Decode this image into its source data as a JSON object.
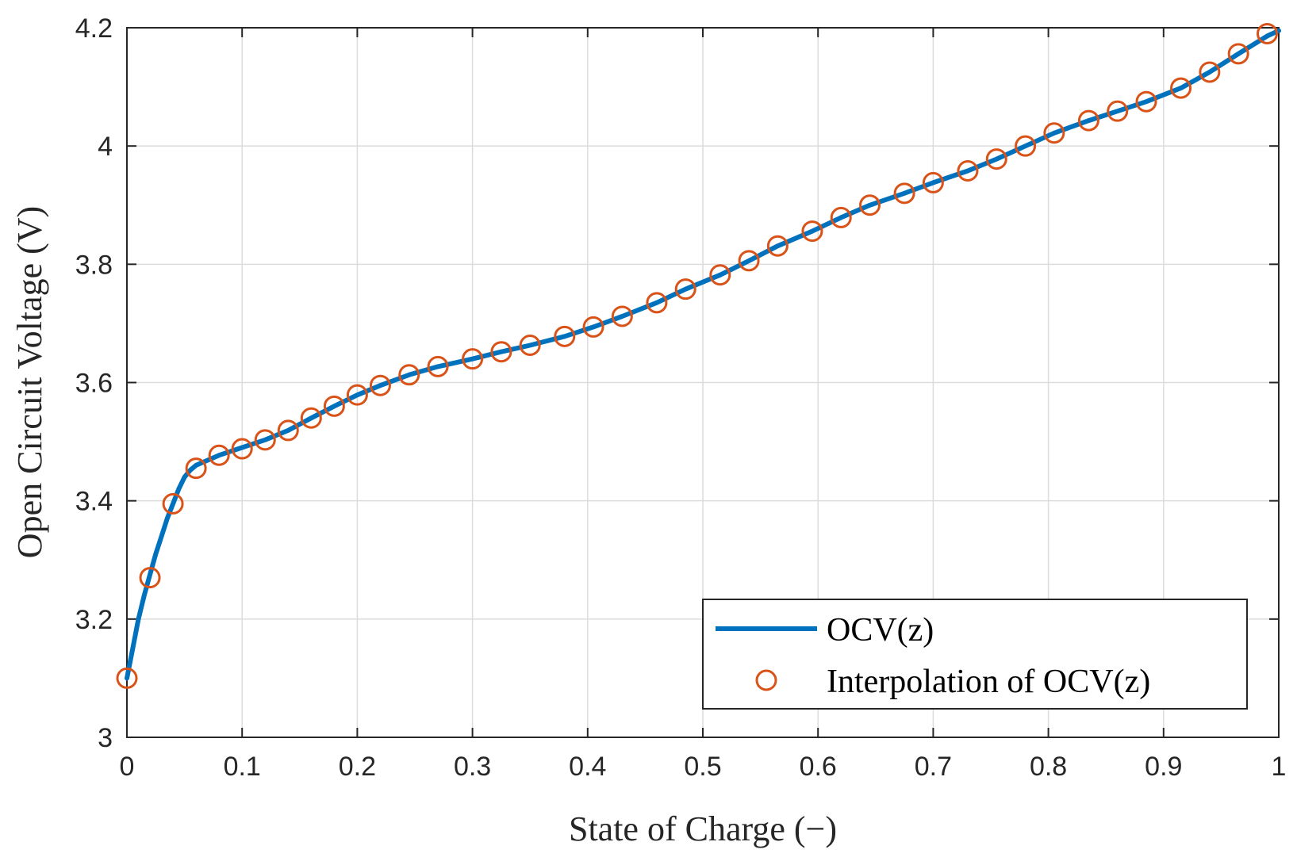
{
  "chart_data": {
    "type": "line",
    "title": "",
    "xlabel": "State of Charge (−)",
    "ylabel": "Open Circuit Voltage (V)",
    "xlim": [
      0,
      1
    ],
    "ylim": [
      3,
      4.2
    ],
    "grid": true,
    "x_ticks": [
      0,
      0.1,
      0.2,
      0.3,
      0.4,
      0.5,
      0.6,
      0.7,
      0.8,
      0.9,
      1
    ],
    "x_tick_labels": [
      "0",
      "0.1",
      "0.2",
      "0.3",
      "0.4",
      "0.5",
      "0.6",
      "0.7",
      "0.8",
      "0.9",
      "1"
    ],
    "y_ticks": [
      3,
      3.2,
      3.4,
      3.6,
      3.8,
      4,
      4.2
    ],
    "y_tick_labels": [
      "3",
      "3.2",
      "3.4",
      "3.6",
      "3.8",
      "4",
      "4.2"
    ],
    "legend_position": "bottom-right",
    "series": [
      {
        "name": "OCV(z)",
        "style": "line",
        "color": "#0072BD",
        "x": [
          0,
          0.005,
          0.01,
          0.015,
          0.02,
          0.025,
          0.03,
          0.035,
          0.04,
          0.045,
          0.05,
          0.055,
          0.06,
          0.08,
          0.1,
          0.12,
          0.14,
          0.16,
          0.18,
          0.2,
          0.22,
          0.245,
          0.27,
          0.3,
          0.325,
          0.35,
          0.38,
          0.405,
          0.43,
          0.46,
          0.485,
          0.515,
          0.54,
          0.565,
          0.595,
          0.62,
          0.645,
          0.675,
          0.7,
          0.73,
          0.755,
          0.78,
          0.805,
          0.835,
          0.86,
          0.885,
          0.915,
          0.94,
          0.965,
          0.99,
          1
        ],
        "y": [
          3.1,
          3.15,
          3.2,
          3.24,
          3.275,
          3.31,
          3.34,
          3.37,
          3.395,
          3.42,
          3.44,
          3.452,
          3.46,
          3.477,
          3.49,
          3.503,
          3.519,
          3.54,
          3.56,
          3.579,
          3.595,
          3.613,
          3.627,
          3.64,
          3.652,
          3.663,
          3.678,
          3.694,
          3.712,
          3.735,
          3.758,
          3.782,
          3.806,
          3.831,
          3.856,
          3.879,
          3.9,
          3.92,
          3.938,
          3.958,
          3.978,
          4.0,
          4.022,
          4.043,
          4.059,
          4.075,
          4.098,
          4.125,
          4.156,
          4.186,
          4.195
        ]
      },
      {
        "name": "Interpolation of OCV(z)",
        "style": "markers",
        "marker": "circle",
        "color": "#D95319",
        "x": [
          0,
          0.02,
          0.04,
          0.06,
          0.08,
          0.1,
          0.12,
          0.14,
          0.16,
          0.18,
          0.2,
          0.22,
          0.245,
          0.27,
          0.3,
          0.325,
          0.35,
          0.38,
          0.405,
          0.43,
          0.46,
          0.485,
          0.515,
          0.54,
          0.565,
          0.595,
          0.62,
          0.645,
          0.675,
          0.7,
          0.73,
          0.755,
          0.78,
          0.805,
          0.835,
          0.86,
          0.885,
          0.915,
          0.94,
          0.965,
          0.99
        ],
        "y": [
          3.1,
          3.27,
          3.395,
          3.455,
          3.477,
          3.488,
          3.503,
          3.519,
          3.54,
          3.56,
          3.579,
          3.595,
          3.613,
          3.627,
          3.64,
          3.652,
          3.663,
          3.678,
          3.694,
          3.712,
          3.735,
          3.758,
          3.782,
          3.806,
          3.831,
          3.856,
          3.879,
          3.9,
          3.92,
          3.938,
          3.958,
          3.978,
          4.0,
          4.022,
          4.043,
          4.059,
          4.075,
          4.098,
          4.125,
          4.156,
          4.19
        ]
      }
    ]
  }
}
